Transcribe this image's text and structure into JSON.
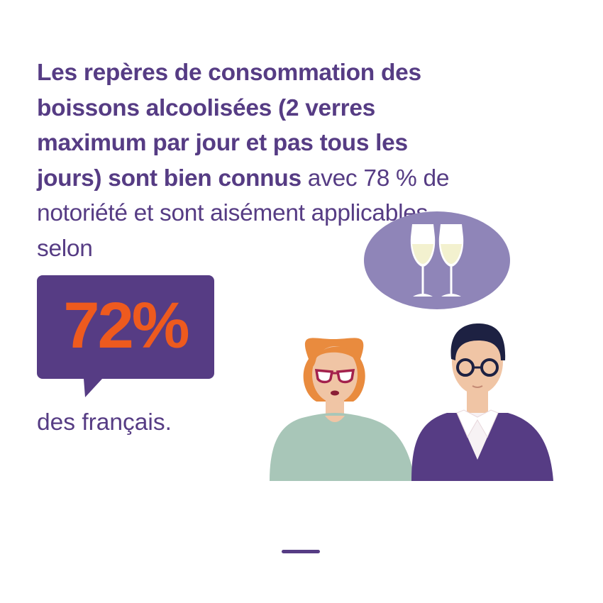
{
  "headline": {
    "bold_text": "Les repères de consommation des boissons alcoolisées (2 verres maximum par jour et pas tous les jours) sont bien connus",
    "regular_text": " avec 78 % de notoriété et sont aisément applicables selon"
  },
  "stat": {
    "value": "72%",
    "caption": "des français."
  },
  "colors": {
    "primary_purple": "#563c84",
    "accent_orange": "#ee5a1e",
    "thought_bubble": "#8f85b8",
    "sweater_green": "#a8c6b8",
    "jacket_purple": "#563c84"
  },
  "illustration": {
    "thought_icon": "wine-glasses-icon",
    "people": [
      "woman-with-red-glasses",
      "man-with-glasses"
    ]
  }
}
